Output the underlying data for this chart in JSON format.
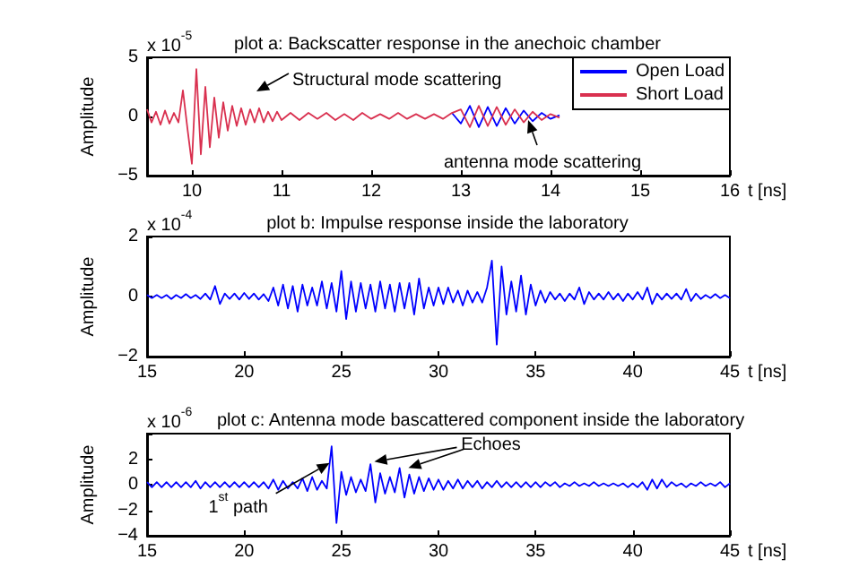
{
  "chart_data": [
    {
      "type": "line",
      "title": "plot a: Backscatter response in the anechoic chamber",
      "xlabel": "t [ns]",
      "ylabel": "Amplitude",
      "xlim": [
        9.5,
        16
      ],
      "xticks": [
        10,
        11,
        12,
        13,
        14,
        15,
        16
      ],
      "ylim": [
        -5,
        5
      ],
      "yticks": [
        -5,
        0,
        5
      ],
      "legend": "top right",
      "annotations": [
        "x 10$^{-5}$",
        "Structural mode scattering",
        {
          "text": "antenna mode scattering",
          "x": 13.75,
          "y": -0.3
        }
      ],
      "x": [
        9.5,
        9.55,
        9.6,
        9.65,
        9.7,
        9.75,
        9.8,
        9.85,
        9.9,
        9.95,
        10,
        10.05,
        10.1,
        10.15,
        10.2,
        10.25,
        10.3,
        10.35,
        10.4,
        10.45,
        10.5,
        10.55,
        10.6,
        10.65,
        10.7,
        10.75,
        10.8,
        10.85,
        10.9,
        10.95,
        11,
        11.1,
        11.2,
        11.3,
        11.4,
        11.5,
        11.6,
        11.7,
        11.8,
        11.9,
        12,
        12.1,
        12.2,
        12.3,
        12.4,
        12.5,
        12.6,
        12.7,
        12.8,
        12.9,
        13,
        13.1,
        13.2,
        13.3,
        13.4,
        13.5,
        13.6,
        13.7,
        13.8,
        13.9,
        14,
        14.1
      ],
      "series": [
        {
          "name": "Open Load",
          "color": "#0000ff",
          "values": [
            null,
            null,
            null,
            null,
            null,
            null,
            null,
            null,
            null,
            null,
            null,
            null,
            null,
            null,
            null,
            null,
            null,
            null,
            null,
            null,
            null,
            null,
            null,
            null,
            null,
            null,
            null,
            null,
            null,
            null,
            null,
            null,
            null,
            null,
            null,
            null,
            null,
            null,
            null,
            null,
            null,
            null,
            null,
            null,
            null,
            null,
            null,
            null,
            null,
            0.3,
            -0.6,
            0.9,
            -0.9,
            0.8,
            -0.8,
            0.7,
            -0.6,
            0.5,
            -0.4,
            0.3,
            -0.2,
            0.1
          ]
        },
        {
          "name": "Short Load",
          "color": "#d9304f",
          "values": [
            0.6,
            -0.5,
            0.4,
            -0.7,
            0.5,
            -0.6,
            0.3,
            -0.5,
            2.2,
            -1,
            -4,
            4,
            -3.2,
            2.5,
            -2.6,
            1.6,
            -1.8,
            1.2,
            -1.2,
            0.9,
            -0.8,
            0.7,
            -0.7,
            0.6,
            -0.5,
            0.7,
            -0.5,
            0.4,
            -0.4,
            0.4,
            -0.3,
            0.3,
            -0.3,
            0.3,
            -0.2,
            0.3,
            -0.3,
            0.2,
            -0.3,
            0.3,
            -0.2,
            0.2,
            -0.2,
            0.3,
            -0.2,
            0.2,
            -0.2,
            0.2,
            -0.2,
            0.3,
            0.6,
            -0.9,
            0.9,
            -0.8,
            0.8,
            -0.7,
            0.6,
            -0.5,
            0.4,
            -0.3,
            0.2,
            -0.1
          ]
        }
      ]
    },
    {
      "type": "line",
      "title": "plot b: Impulse response inside the laboratory",
      "xlabel": "t [ns]",
      "ylabel": "Amplitude",
      "xlim": [
        15,
        45
      ],
      "xticks": [
        15,
        20,
        25,
        30,
        35,
        40,
        45
      ],
      "ylim": [
        -2,
        2
      ],
      "yticks": [
        -2,
        0,
        2
      ],
      "annotations": [
        "x 10$^{-4}$"
      ],
      "x": [
        15,
        15.25,
        15.5,
        15.75,
        16,
        16.25,
        16.5,
        16.75,
        17,
        17.25,
        17.5,
        17.75,
        18,
        18.25,
        18.5,
        18.75,
        19,
        19.25,
        19.5,
        19.75,
        20,
        20.25,
        20.5,
        20.75,
        21,
        21.25,
        21.5,
        21.75,
        22,
        22.25,
        22.5,
        22.75,
        23,
        23.25,
        23.5,
        23.75,
        24,
        24.25,
        24.5,
        24.75,
        25,
        25.25,
        25.5,
        25.75,
        26,
        26.25,
        26.5,
        26.75,
        27,
        27.25,
        27.5,
        27.75,
        28,
        28.25,
        28.5,
        28.75,
        29,
        29.25,
        29.5,
        29.75,
        30,
        30.25,
        30.5,
        30.75,
        31,
        31.25,
        31.5,
        31.75,
        32,
        32.25,
        32.5,
        32.75,
        33,
        33.25,
        33.5,
        33.75,
        34,
        34.25,
        34.5,
        34.75,
        35,
        35.25,
        35.5,
        35.75,
        36,
        36.25,
        36.5,
        36.75,
        37,
        37.25,
        37.5,
        37.75,
        38,
        38.25,
        38.5,
        38.75,
        39,
        39.25,
        39.5,
        39.75,
        40,
        40.25,
        40.5,
        40.75,
        41,
        41.25,
        41.5,
        41.75,
        42,
        42.25,
        42.5,
        42.75,
        43,
        43.25,
        43.5,
        43.75,
        44,
        44.25,
        44.5,
        44.75,
        45
      ],
      "series": [
        {
          "color": "#0000ff",
          "values": [
            0.05,
            -0.05,
            0.05,
            -0.05,
            0.05,
            -0.08,
            0.05,
            -0.05,
            0.08,
            -0.05,
            0.05,
            -0.08,
            0.1,
            -0.1,
            0.35,
            -0.25,
            0.1,
            -0.08,
            0.1,
            -0.1,
            0.12,
            -0.08,
            0.1,
            -0.1,
            0.08,
            -0.15,
            0.3,
            -0.3,
            0.4,
            -0.4,
            0.35,
            -0.5,
            0.4,
            -0.3,
            0.3,
            -0.3,
            0.5,
            -0.4,
            0.45,
            -0.5,
            0.85,
            -0.75,
            0.5,
            -0.5,
            0.45,
            -0.4,
            0.4,
            -0.5,
            0.5,
            -0.4,
            0.4,
            -0.5,
            0.45,
            -0.4,
            0.45,
            -0.6,
            0.6,
            -0.4,
            0.3,
            -0.3,
            0.3,
            -0.25,
            0.3,
            -0.2,
            0.2,
            -0.3,
            0.2,
            -0.2,
            0.15,
            -0.2,
            0.3,
            1.2,
            -1.6,
            1.0,
            -0.6,
            0.5,
            -0.5,
            0.7,
            -0.6,
            0.4,
            -0.3,
            0.2,
            -0.2,
            0.15,
            -0.1,
            0.1,
            -0.15,
            0.1,
            -0.1,
            0.3,
            -0.25,
            0.15,
            -0.1,
            0.1,
            -0.1,
            0.15,
            -0.1,
            0.1,
            -0.15,
            0.1,
            -0.1,
            0.15,
            -0.1,
            0.3,
            -0.25,
            0.1,
            -0.1,
            0.1,
            -0.08,
            0.1,
            -0.1,
            0.25,
            -0.15,
            0.1,
            -0.08,
            0.05,
            -0.05,
            0.08,
            -0.05,
            0.05,
            -0.05
          ]
        }
      ]
    },
    {
      "type": "line",
      "title": "plot c: Antenna mode bascattered component inside the laboratory",
      "xlabel": "t [ns]",
      "ylabel": "Amplitude",
      "xlim": [
        15,
        45
      ],
      "xticks": [
        15,
        20,
        25,
        30,
        35,
        40,
        45
      ],
      "ylim": [
        -4,
        4
      ],
      "yticks": [
        -4,
        -2,
        0,
        2,
        {
          "value": 4,
          "label": null
        }
      ],
      "annotations": [
        "x 10$^{-6}$",
        {
          "text": "1$^{st}$ path",
          "x": 24.4,
          "y": 1.7
        },
        {
          "text": "Echoes",
          "x": 26.7,
          "y": 1.8
        }
      ],
      "x": [
        15,
        15.25,
        15.5,
        15.75,
        16,
        16.25,
        16.5,
        16.75,
        17,
        17.25,
        17.5,
        17.75,
        18,
        18.25,
        18.5,
        18.75,
        19,
        19.25,
        19.5,
        19.75,
        20,
        20.25,
        20.5,
        20.75,
        21,
        21.25,
        21.5,
        21.75,
        22,
        22.25,
        22.5,
        22.75,
        23,
        23.25,
        23.5,
        23.75,
        24,
        24.25,
        24.5,
        24.75,
        25,
        25.25,
        25.5,
        25.75,
        26,
        26.25,
        26.5,
        26.75,
        27,
        27.25,
        27.5,
        27.75,
        28,
        28.25,
        28.5,
        28.75,
        29,
        29.25,
        29.5,
        29.75,
        30,
        30.25,
        30.5,
        30.75,
        31,
        31.25,
        31.5,
        31.75,
        32,
        32.25,
        32.5,
        32.75,
        33,
        33.25,
        33.5,
        33.75,
        34,
        34.25,
        34.5,
        34.75,
        35,
        35.25,
        35.5,
        35.75,
        36,
        36.25,
        36.5,
        36.75,
        37,
        37.25,
        37.5,
        37.75,
        38,
        38.25,
        38.5,
        38.75,
        39,
        39.25,
        39.5,
        39.75,
        40,
        40.25,
        40.5,
        40.75,
        41,
        41.25,
        41.5,
        41.75,
        42,
        42.25,
        42.5,
        42.75,
        43,
        43.25,
        43.5,
        43.75,
        44,
        44.25,
        44.5,
        44.75,
        45
      ],
      "series": [
        {
          "color": "#0000ff",
          "values": [
            0.2,
            -0.2,
            0.2,
            -0.2,
            0.2,
            -0.2,
            0.2,
            -0.2,
            0.2,
            -0.2,
            0.3,
            -0.3,
            0.2,
            -0.2,
            0.2,
            -0.2,
            0.2,
            -0.2,
            0.2,
            -0.2,
            0.2,
            -0.2,
            0.2,
            -0.2,
            0.2,
            -0.3,
            0.4,
            -0.4,
            0.3,
            -0.3,
            0.2,
            -0.3,
            0.5,
            -0.5,
            0.6,
            -0.4,
            0.3,
            -0.3,
            3.0,
            -3.0,
            1.0,
            -0.8,
            0.6,
            -0.6,
            0.4,
            -0.5,
            1.6,
            -1.4,
            0.9,
            -0.7,
            0.6,
            -0.6,
            1.3,
            -1.0,
            0.8,
            -0.7,
            0.6,
            -0.5,
            0.5,
            -0.4,
            0.4,
            -0.4,
            0.3,
            -0.3,
            0.4,
            -0.3,
            0.3,
            -0.2,
            0.3,
            -0.3,
            0.2,
            -0.2,
            0.3,
            -0.2,
            0.2,
            -0.2,
            0.2,
            -0.2,
            0.2,
            -0.2,
            0.2,
            -0.2,
            0.2,
            -0.1,
            0.2,
            -0.2,
            0.1,
            -0.1,
            0.2,
            -0.1,
            0.1,
            -0.1,
            0.2,
            -0.1,
            0.1,
            -0.1,
            0.1,
            -0.1,
            0.1,
            -0.2,
            0.1,
            -0.2,
            0.2,
            -0.4,
            0.4,
            -0.3,
            0.4,
            -0.2,
            0.2,
            -0.1,
            0.1,
            -0.2,
            0.1,
            -0.1,
            0.2,
            -0.1,
            0.1,
            -0.1,
            0.2,
            -0.2,
            0.1
          ]
        }
      ]
    }
  ]
}
